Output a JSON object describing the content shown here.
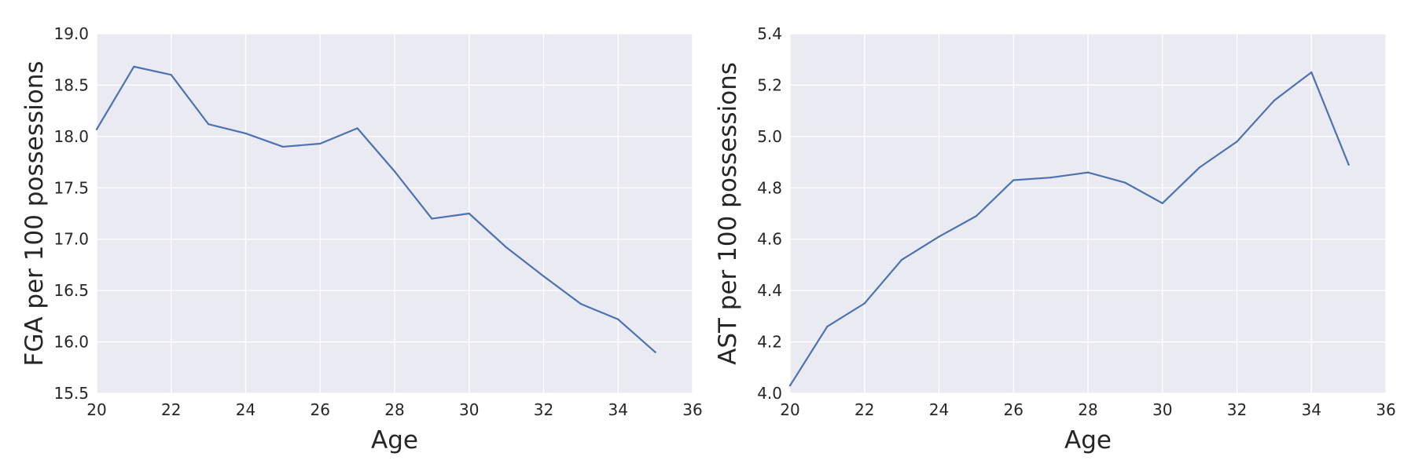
{
  "chart_data": [
    {
      "type": "line",
      "xlabel": "Age",
      "ylabel": "FGA per 100 possessions",
      "xlim": [
        20,
        36
      ],
      "ylim": [
        15.5,
        19.0
      ],
      "xticks": [
        20,
        22,
        24,
        26,
        28,
        30,
        32,
        34,
        36
      ],
      "yticks": [
        15.5,
        16.0,
        16.5,
        17.0,
        17.5,
        18.0,
        18.5,
        19.0
      ],
      "xtick_labels": [
        "20",
        "22",
        "24",
        "26",
        "28",
        "30",
        "32",
        "34",
        "36"
      ],
      "ytick_labels": [
        "15.5",
        "16.0",
        "16.5",
        "17.0",
        "17.5",
        "18.0",
        "18.5",
        "19.0"
      ],
      "grid": true,
      "series": [
        {
          "color": "#4c72b0",
          "x": [
            20,
            21,
            22,
            23,
            24,
            25,
            26,
            27,
            28,
            29,
            30,
            31,
            32,
            33,
            34,
            35
          ],
          "y": [
            18.07,
            18.68,
            18.6,
            18.12,
            18.03,
            17.9,
            17.93,
            18.08,
            17.66,
            17.2,
            17.25,
            16.92,
            16.64,
            16.37,
            16.22,
            15.9
          ]
        }
      ]
    },
    {
      "type": "line",
      "xlabel": "Age",
      "ylabel": "AST per 100 possessions",
      "xlim": [
        20,
        36
      ],
      "ylim": [
        4.0,
        5.4
      ],
      "xticks": [
        20,
        22,
        24,
        26,
        28,
        30,
        32,
        34,
        36
      ],
      "yticks": [
        4.0,
        4.2,
        4.4,
        4.6,
        4.8,
        5.0,
        5.2,
        5.4
      ],
      "xtick_labels": [
        "20",
        "22",
        "24",
        "26",
        "28",
        "30",
        "32",
        "34",
        "36"
      ],
      "ytick_labels": [
        "4.0",
        "4.2",
        "4.4",
        "4.6",
        "4.8",
        "5.0",
        "5.2",
        "5.4"
      ],
      "grid": true,
      "series": [
        {
          "color": "#4c72b0",
          "x": [
            20,
            21,
            22,
            23,
            24,
            25,
            26,
            27,
            28,
            29,
            30,
            31,
            32,
            33,
            34,
            35
          ],
          "y": [
            4.03,
            4.26,
            4.35,
            4.52,
            4.61,
            4.69,
            4.83,
            4.84,
            4.86,
            4.82,
            4.74,
            4.88,
            4.98,
            5.14,
            5.25,
            4.89
          ]
        }
      ]
    }
  ],
  "style": {
    "plot_background": "#eaeaf2",
    "grid_color": "#ffffff",
    "text_color": "#262626"
  }
}
